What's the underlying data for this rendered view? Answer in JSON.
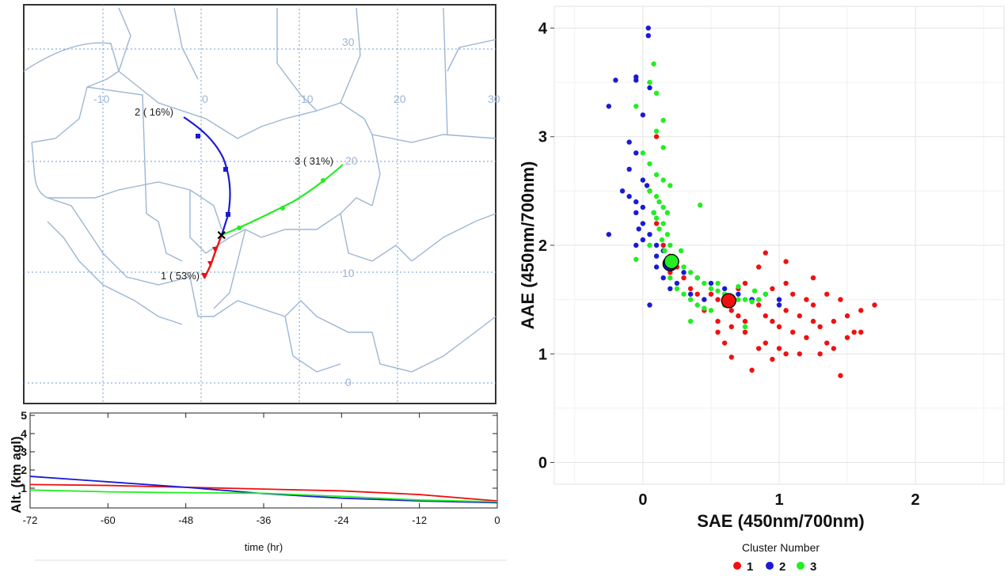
{
  "colors": {
    "cluster1": "#ee1111",
    "cluster2": "#1a1ad6",
    "cluster3": "#22ee22",
    "map_border": "#9db6d3",
    "map_grid": "#6f9ccc"
  },
  "map": {
    "lon_labels": [
      "-10",
      "0",
      "10",
      "20",
      "30",
      "30"
    ],
    "lat_labels": [
      "30",
      "20",
      "10",
      "0"
    ],
    "trajectories": [
      {
        "label": "1 ( 53%)"
      },
      {
        "label": "2 ( 16%)"
      },
      {
        "label": "3 ( 31%)"
      }
    ]
  },
  "chart_data": [
    {
      "type": "line",
      "xlabel": "time (hr)",
      "ylabel": "Alt. (km agl)",
      "xlim": [
        -72,
        0
      ],
      "ylim": [
        0,
        5
      ],
      "x_ticks": [
        "-72",
        "-60",
        "-48",
        "-36",
        "-24",
        "-12",
        "0"
      ],
      "y_ticks": [
        "1",
        "2",
        "3",
        "4",
        "5"
      ],
      "x": [
        -72,
        -60,
        -48,
        -36,
        -24,
        -12,
        0
      ],
      "series": [
        {
          "color": "#ee1111",
          "values": [
            1.2,
            1.15,
            1.05,
            0.95,
            0.85,
            0.65,
            0.3
          ]
        },
        {
          "color": "#1a1ad6",
          "values": [
            1.65,
            1.35,
            1.05,
            0.7,
            0.45,
            0.3,
            0.2
          ]
        },
        {
          "color": "#22ee22",
          "values": [
            0.9,
            0.8,
            0.75,
            0.72,
            0.55,
            0.35,
            0.25
          ]
        }
      ],
      "grid": false
    },
    {
      "type": "scatter",
      "xlabel": "SAE (450nm/700nm)",
      "ylabel": "AAE (450nm/700nm)",
      "xlim": [
        -0.65,
        2.65
      ],
      "ylim": [
        -0.2,
        4.2
      ],
      "x_ticks": [
        "0",
        "1",
        "2"
      ],
      "y_ticks": [
        "0",
        "1",
        "2",
        "3",
        "4"
      ],
      "grid": true,
      "legend": {
        "title": "Cluster Number",
        "position": "bottom",
        "labels": [
          "1",
          "2",
          "3"
        ]
      },
      "series": [
        {
          "name": "1",
          "color": "#ee1111",
          "centroid": [
            0.63,
            1.49
          ],
          "points": [
            [
              0.5,
              1.55
            ],
            [
              0.55,
              1.5
            ],
            [
              0.6,
              1.45
            ],
            [
              0.65,
              1.4
            ],
            [
              0.7,
              1.35
            ],
            [
              0.75,
              1.3
            ],
            [
              0.8,
              1.5
            ],
            [
              0.85,
              1.45
            ],
            [
              0.9,
              1.35
            ],
            [
              0.95,
              1.3
            ],
            [
              1.0,
              1.25
            ],
            [
              1.05,
              1.4
            ],
            [
              1.1,
              1.2
            ],
            [
              1.15,
              1.35
            ],
            [
              1.2,
              1.15
            ],
            [
              1.25,
              1.45
            ],
            [
              1.3,
              1.25
            ],
            [
              1.35,
              1.1
            ],
            [
              1.4,
              1.3
            ],
            [
              1.45,
              1.5
            ],
            [
              1.5,
              1.35
            ],
            [
              1.55,
              1.2
            ],
            [
              1.6,
              1.4
            ],
            [
              1.7,
              1.45
            ],
            [
              1.0,
              1.05
            ],
            [
              1.05,
              1.0
            ],
            [
              0.9,
              1.1
            ],
            [
              0.85,
              1.05
            ],
            [
              0.8,
              0.85
            ],
            [
              0.75,
              1.2
            ],
            [
              0.7,
              1.6
            ],
            [
              0.65,
              1.25
            ],
            [
              0.55,
              1.3
            ],
            [
              0.45,
              1.4
            ],
            [
              0.4,
              1.55
            ],
            [
              0.35,
              1.6
            ],
            [
              0.3,
              1.7
            ],
            [
              0.25,
              1.8
            ],
            [
              0.2,
              1.9
            ],
            [
              0.15,
              2.0
            ],
            [
              0.1,
              2.2
            ],
            [
              0.05,
              2.5
            ],
            [
              0.1,
              3.0
            ],
            [
              0.2,
              1.75
            ],
            [
              1.1,
              1.55
            ],
            [
              1.2,
              1.5
            ],
            [
              0.95,
              1.6
            ],
            [
              1.05,
              1.65
            ],
            [
              1.25,
              1.7
            ],
            [
              1.3,
              1.0
            ],
            [
              1.4,
              1.05
            ],
            [
              1.45,
              0.8
            ],
            [
              1.6,
              1.2
            ],
            [
              0.6,
              1.1
            ],
            [
              0.9,
              1.93
            ],
            [
              1.05,
              1.85
            ],
            [
              0.85,
              1.8
            ],
            [
              0.95,
              0.95
            ],
            [
              1.15,
              1.0
            ],
            [
              0.75,
              1.65
            ],
            [
              0.55,
              1.2
            ],
            [
              1.35,
              1.55
            ],
            [
              1.5,
              1.15
            ],
            [
              0.65,
              0.97
            ],
            [
              1.25,
              1.3
            ]
          ]
        },
        {
          "name": "2",
          "color": "#1a1ad6",
          "centroid": [
            0.2,
            1.83
          ],
          "points": [
            [
              0.04,
              4.0
            ],
            [
              0.04,
              3.93
            ],
            [
              -0.05,
              3.55
            ],
            [
              -0.05,
              3.52
            ],
            [
              -0.2,
              3.52
            ],
            [
              -0.25,
              3.28
            ],
            [
              0.0,
              3.2
            ],
            [
              0.05,
              3.45
            ],
            [
              -0.1,
              2.95
            ],
            [
              -0.05,
              2.85
            ],
            [
              -0.1,
              2.7
            ],
            [
              -0.15,
              2.5
            ],
            [
              -0.1,
              2.45
            ],
            [
              -0.05,
              2.4
            ],
            [
              0.0,
              2.35
            ],
            [
              -0.05,
              2.3
            ],
            [
              0.0,
              2.2
            ],
            [
              0.05,
              2.1
            ],
            [
              0.1,
              2.0
            ],
            [
              0.15,
              1.95
            ],
            [
              -0.25,
              2.1
            ],
            [
              0.0,
              2.05
            ],
            [
              0.1,
              1.9
            ],
            [
              0.2,
              1.85
            ],
            [
              0.3,
              1.75
            ],
            [
              0.4,
              1.7
            ],
            [
              0.5,
              1.65
            ],
            [
              0.6,
              1.6
            ],
            [
              0.7,
              1.55
            ],
            [
              0.8,
              1.5
            ],
            [
              0.9,
              1.55
            ],
            [
              1.0,
              1.5
            ],
            [
              1.0,
              1.45
            ],
            [
              0.05,
              1.45
            ],
            [
              0.15,
              1.7
            ],
            [
              0.25,
              1.65
            ],
            [
              0.0,
              2.6
            ],
            [
              -0.05,
              2.0
            ],
            [
              0.1,
              1.8
            ],
            [
              0.2,
              1.6
            ],
            [
              0.35,
              1.55
            ],
            [
              0.45,
              1.5
            ],
            [
              0.03,
              2.55
            ],
            [
              0.08,
              2.3
            ],
            [
              -0.03,
              2.15
            ]
          ]
        },
        {
          "name": "3",
          "color": "#22ee22",
          "centroid": [
            0.21,
            1.85
          ],
          "points": [
            [
              0.08,
              3.67
            ],
            [
              0.05,
              3.5
            ],
            [
              0.1,
              3.4
            ],
            [
              -0.05,
              3.28
            ],
            [
              0.15,
              3.15
            ],
            [
              0.1,
              3.05
            ],
            [
              0.0,
              2.85
            ],
            [
              0.05,
              2.75
            ],
            [
              0.1,
              2.65
            ],
            [
              0.15,
              2.6
            ],
            [
              0.05,
              2.5
            ],
            [
              0.1,
              2.45
            ],
            [
              0.12,
              2.4
            ],
            [
              0.15,
              2.35
            ],
            [
              0.08,
              2.3
            ],
            [
              0.1,
              2.25
            ],
            [
              0.15,
              2.2
            ],
            [
              0.12,
              2.15
            ],
            [
              0.18,
              2.1
            ],
            [
              0.14,
              2.05
            ],
            [
              0.2,
              2.0
            ],
            [
              0.16,
              1.95
            ],
            [
              0.22,
              1.9
            ],
            [
              0.25,
              1.85
            ],
            [
              0.3,
              1.8
            ],
            [
              0.35,
              1.75
            ],
            [
              0.4,
              1.7
            ],
            [
              0.45,
              1.65
            ],
            [
              0.5,
              1.6
            ],
            [
              0.55,
              1.58
            ],
            [
              0.6,
              1.55
            ],
            [
              0.65,
              1.52
            ],
            [
              0.7,
              1.5
            ],
            [
              0.75,
              1.5
            ],
            [
              0.8,
              1.48
            ],
            [
              0.85,
              1.5
            ],
            [
              0.9,
              1.55
            ],
            [
              0.2,
              1.7
            ],
            [
              0.25,
              1.6
            ],
            [
              0.3,
              1.55
            ],
            [
              0.35,
              1.5
            ],
            [
              0.4,
              1.45
            ],
            [
              0.45,
              1.42
            ],
            [
              0.5,
              1.4
            ],
            [
              -0.05,
              1.87
            ],
            [
              0.42,
              2.37
            ],
            [
              0.75,
              1.25
            ],
            [
              0.35,
              1.3
            ],
            [
              0.15,
              2.9
            ],
            [
              0.2,
              2.55
            ],
            [
              0.18,
              2.3
            ],
            [
              0.28,
              1.95
            ],
            [
              0.05,
              2.0
            ],
            [
              0.6,
              1.45
            ],
            [
              0.55,
              1.65
            ],
            [
              0.7,
              1.62
            ],
            [
              0.82,
              1.58
            ]
          ]
        }
      ]
    }
  ]
}
